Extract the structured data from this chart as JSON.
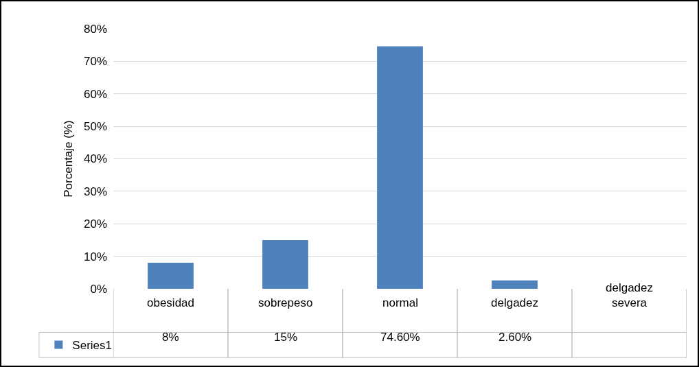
{
  "chart_data": {
    "type": "bar",
    "ylabel": "Porcentaje (%)",
    "categories": [
      "obesidad",
      "sobrepeso",
      "normal",
      "delgadez",
      "delgadez severa"
    ],
    "series": [
      {
        "name": "Series1",
        "color": "#4f81bd",
        "values": [
          8,
          15,
          74.6,
          2.6,
          null
        ],
        "value_labels": [
          "8%",
          "15%",
          "74.60%",
          "2.60%",
          null
        ]
      }
    ],
    "ylim": [
      0,
      80
    ],
    "yticks": [
      {
        "value": 0,
        "label": "0%"
      },
      {
        "value": 10,
        "label": "10%"
      },
      {
        "value": 20,
        "label": "20%"
      },
      {
        "value": 30,
        "label": "30%"
      },
      {
        "value": 40,
        "label": "40%"
      },
      {
        "value": 50,
        "label": "50%"
      },
      {
        "value": 60,
        "label": "60%"
      },
      {
        "value": 70,
        "label": "70%"
      },
      {
        "value": 80,
        "label": "80%"
      }
    ],
    "grid": "y",
    "legend": "bottom left"
  }
}
